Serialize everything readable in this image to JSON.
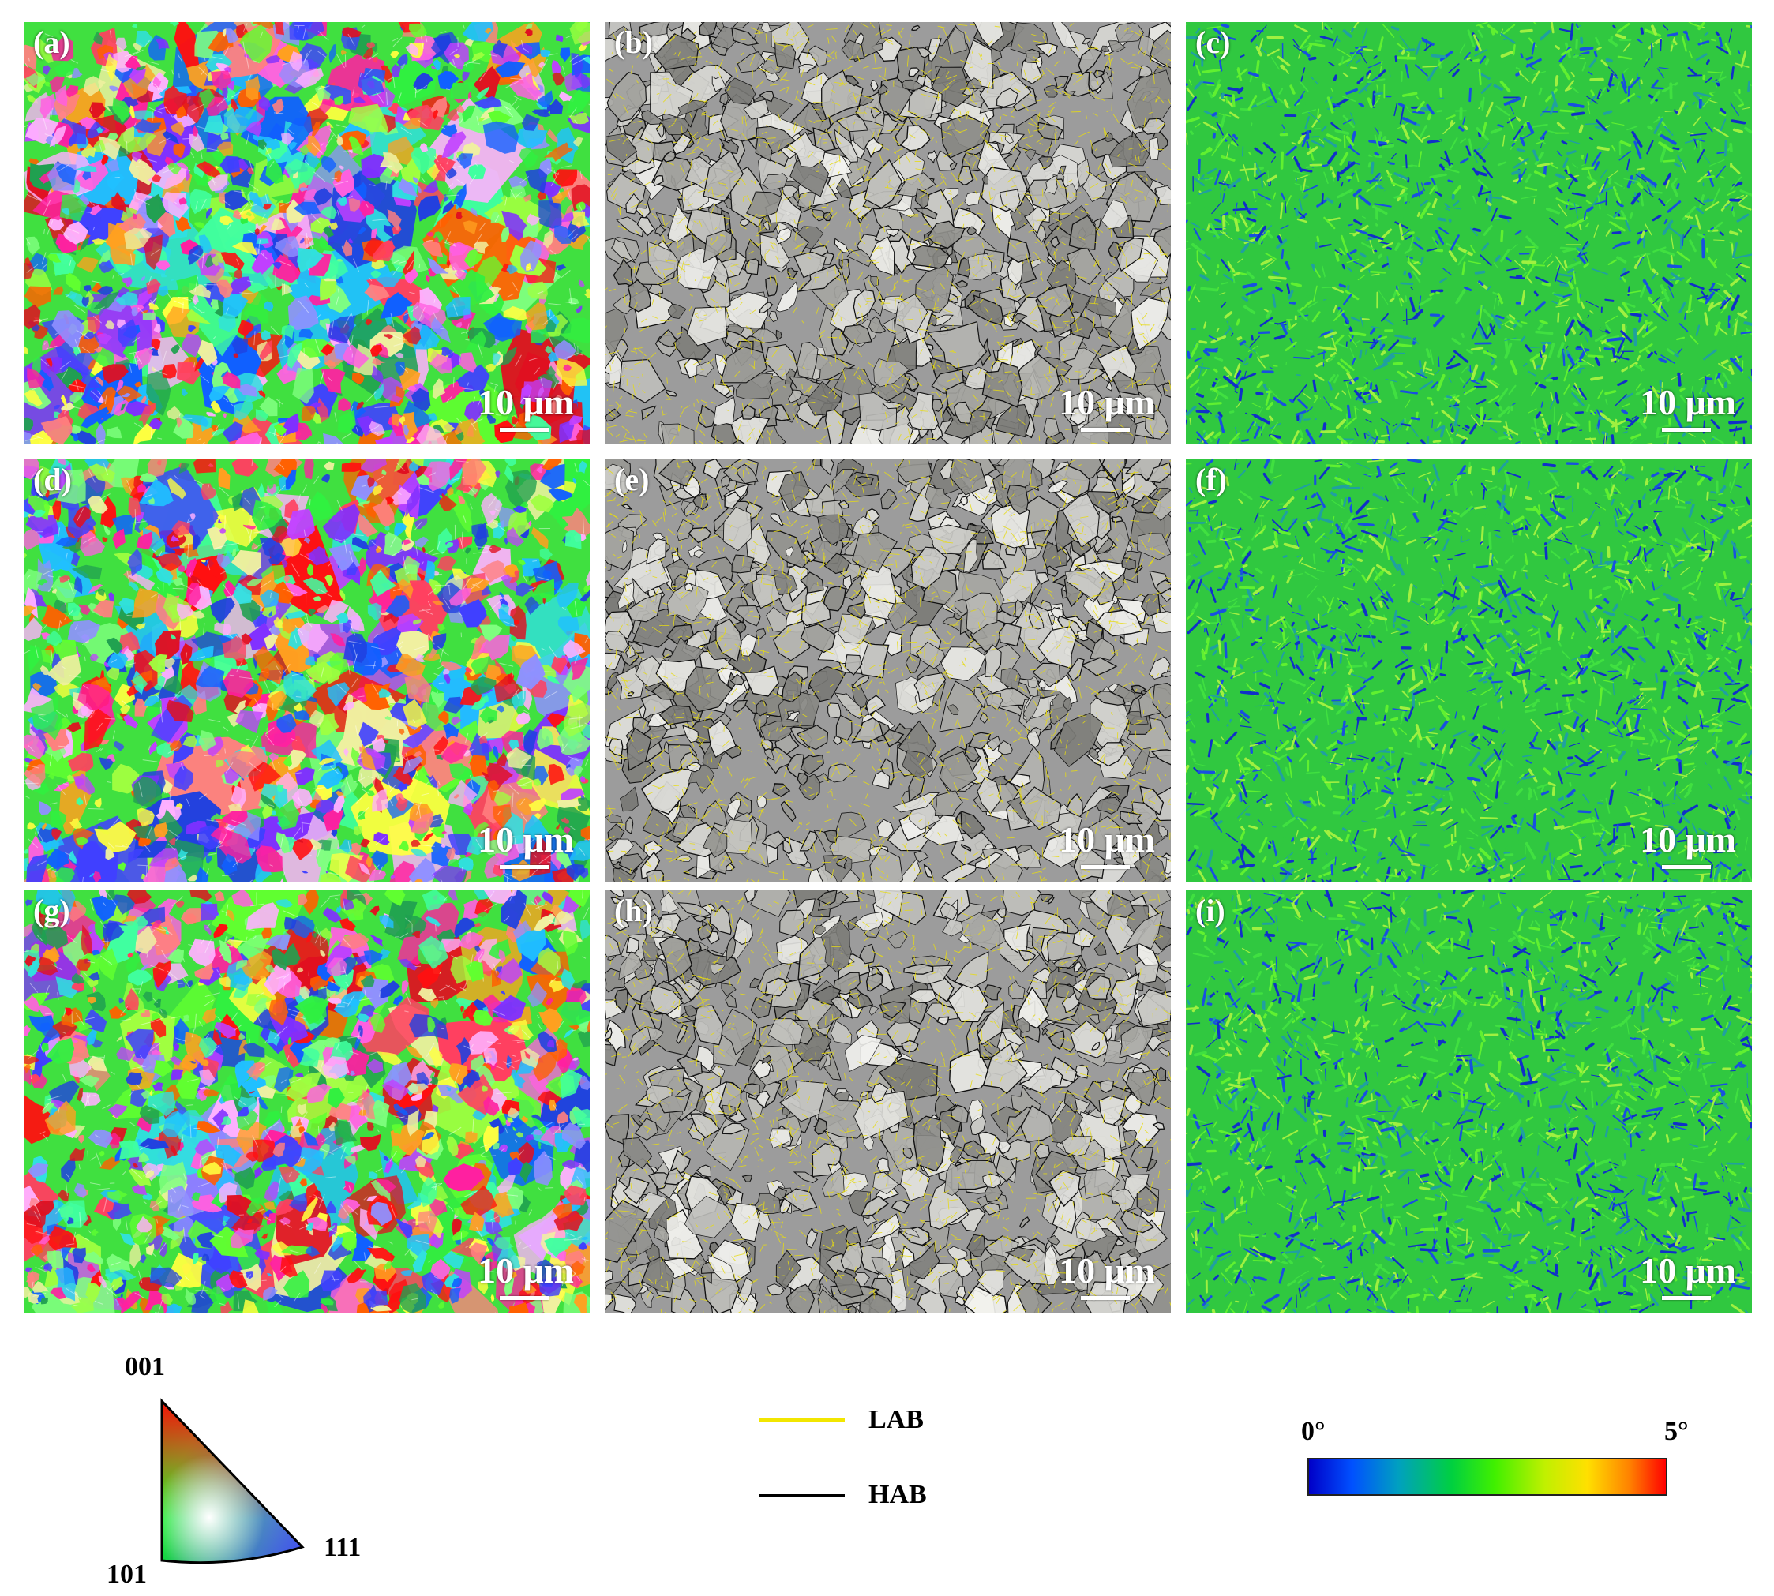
{
  "panels": [
    {
      "id": "a",
      "label": "(a)",
      "type": "ipf",
      "scale": "10 μm"
    },
    {
      "id": "b",
      "label": "(b)",
      "type": "boundary",
      "scale": "10 μm"
    },
    {
      "id": "c",
      "label": "(c)",
      "type": "kam",
      "scale": "10 μm"
    },
    {
      "id": "d",
      "label": "(d)",
      "type": "ipf",
      "scale": "10 μm"
    },
    {
      "id": "e",
      "label": "(e)",
      "type": "boundary",
      "scale": "10 μm"
    },
    {
      "id": "f",
      "label": "(f)",
      "type": "kam",
      "scale": "10 μm"
    },
    {
      "id": "g",
      "label": "(g)",
      "type": "ipf",
      "scale": "10 μm"
    },
    {
      "id": "h",
      "label": "(h)",
      "type": "boundary",
      "scale": "10 μm"
    },
    {
      "id": "i",
      "label": "(i)",
      "type": "kam",
      "scale": "10 μm"
    }
  ],
  "ipf_legend": {
    "top": "001",
    "bottom_left": "101",
    "bottom_right": "111"
  },
  "boundary_legend": [
    {
      "label": "LAB",
      "color": "#f2e600"
    },
    {
      "label": "HAB",
      "color": "#000000"
    }
  ],
  "kam_legend": {
    "min": "0°",
    "max": "5°"
  }
}
